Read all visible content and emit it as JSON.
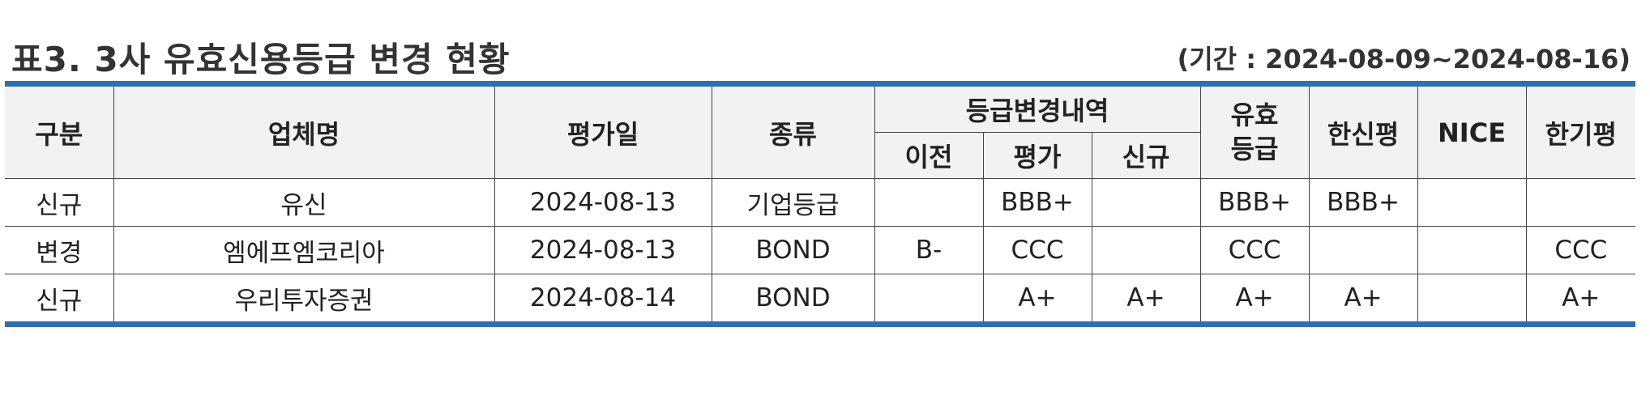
{
  "title": "표3. 3사 유효신용등급 변경 현황",
  "period": "(기간 : 2024-08-09~2024-08-16)",
  "header": {
    "category": "구분",
    "company": "업체명",
    "eval_date": "평가일",
    "type": "종류",
    "change_history": "등급변경내역",
    "before": "이전",
    "evaluation": "평가",
    "new": "신규",
    "valid_grade": "유효\n등급",
    "hanshin": "한신평",
    "nice": "NICE",
    "hangi": "한기평"
  },
  "rows": [
    {
      "category": "신규",
      "company": "유신",
      "date": "2024-08-13",
      "type": "기업등급",
      "before": "",
      "eval": "BBB+",
      "new": "",
      "valid": "BBB+",
      "hanshin": "BBB+",
      "nice": "",
      "hangi": ""
    },
    {
      "category": "변경",
      "company": "엠에프엠코리아",
      "date": "2024-08-13",
      "type": "BOND",
      "before": "B-",
      "eval": "CCC",
      "new": "",
      "valid": "CCC",
      "hanshin": "",
      "nice": "",
      "hangi": "CCC"
    },
    {
      "category": "신규",
      "company": "우리투자증권",
      "date": "2024-08-14",
      "type": "BOND",
      "before": "",
      "eval": "A+",
      "new": "A+",
      "valid": "A+",
      "hanshin": "A+",
      "nice": "",
      "hangi": "A+"
    }
  ]
}
